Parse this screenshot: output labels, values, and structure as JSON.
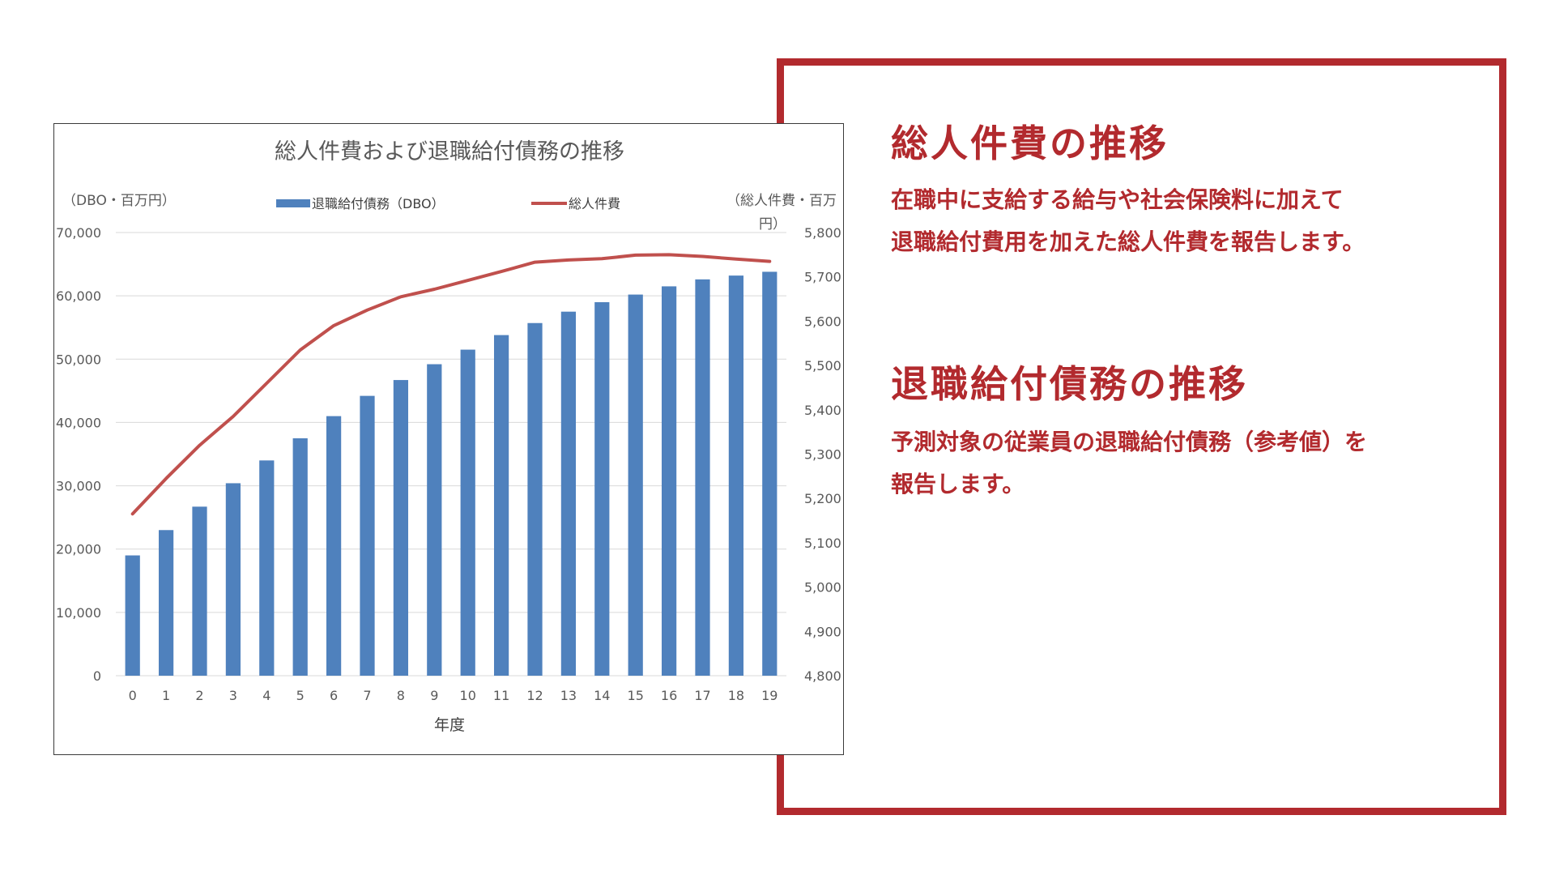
{
  "colors": {
    "accent_red": "#b22a2e",
    "bar_blue": "#4f81bd",
    "line_red": "#c0504d",
    "grid": "#d9d9d9",
    "axis_text": "#595959"
  },
  "sections": [
    {
      "heading": "総人件費の推移",
      "lines": [
        "在職中に支給する給与や社会保険料に加えて",
        "退職給付費用を加えた総人件費を報告します。"
      ]
    },
    {
      "heading": "退職給付債務の推移",
      "lines": [
        "予測対象の従業員の退職給付債務（参考値）を",
        "報告します。"
      ]
    }
  ],
  "chart_data": {
    "type": "bar",
    "title": "総人件費および退職給付債務の推移",
    "xlabel": "年度",
    "y_left_label": "（DBO・百万円）",
    "y_right_label_line1": "（総人件費・百万",
    "y_right_label_line2": "円）",
    "legend_position": "top",
    "grid": true,
    "categories": [
      "0",
      "1",
      "2",
      "3",
      "4",
      "5",
      "6",
      "7",
      "8",
      "9",
      "10",
      "11",
      "12",
      "13",
      "14",
      "15",
      "16",
      "17",
      "18",
      "19"
    ],
    "y_left_range": [
      0,
      70000
    ],
    "y_left_ticks": [
      "0",
      "10,000",
      "20,000",
      "30,000",
      "40,000",
      "50,000",
      "60,000",
      "70,000"
    ],
    "y_right_range": [
      4800,
      5800
    ],
    "y_right_ticks": [
      "4,800",
      "4,900",
      "5,000",
      "5,100",
      "5,200",
      "5,300",
      "5,400",
      "5,500",
      "5,600",
      "5,700",
      "5,800"
    ],
    "series": [
      {
        "name": "退職給付債務（DBO）",
        "type": "bar",
        "axis": "left",
        "values": [
          19000,
          23000,
          26700,
          30400,
          34000,
          37500,
          41000,
          44200,
          46700,
          49200,
          51500,
          53800,
          55700,
          57500,
          59000,
          60200,
          61500,
          62600,
          63200,
          63800
        ]
      },
      {
        "name": "総人件費",
        "type": "line",
        "axis": "right",
        "values": [
          5165,
          5245,
          5320,
          5385,
          5460,
          5535,
          5590,
          5625,
          5655,
          5672,
          5692,
          5712,
          5733,
          5738,
          5741,
          5749,
          5750,
          5746,
          5740,
          5735
        ]
      }
    ]
  }
}
